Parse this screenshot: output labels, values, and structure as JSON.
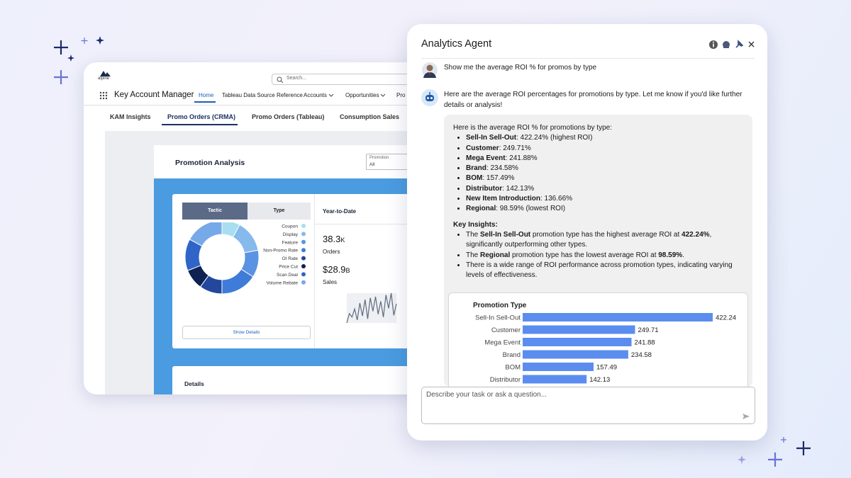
{
  "app": {
    "brand": "alpine",
    "search_placeholder": "Search...",
    "title": "Key Account Manager",
    "nav": [
      "Home",
      "Tableau Data Source Reference",
      "Accounts",
      "Opportunities",
      "Pro"
    ],
    "tabs": [
      "KAM Insights",
      "Promo Orders (CRMA)",
      "Promo Orders (Tableau)",
      "Consumption Sales"
    ]
  },
  "dashboard": {
    "title": "Promotion Analysis",
    "filter_label": "Promotion",
    "filter_value": "All",
    "toggle": [
      "Tactic",
      "Type"
    ],
    "show_details": "Show Details",
    "ytd_title": "Year-to-Date",
    "kpis": [
      {
        "value": "38.3",
        "unit": "K",
        "label": "Orders"
      },
      {
        "value": "$28.9",
        "unit": "B",
        "label": "Sales"
      }
    ],
    "details_title": "Details"
  },
  "chart_data": [
    {
      "type": "pie",
      "donut": true,
      "categories": [
        "Coupon",
        "Display",
        "Feature",
        "Non-Promo Rate",
        "OI Rate",
        "Price Cut",
        "Scan Deal",
        "Volume Rebate"
      ],
      "colors": [
        "#a9def0",
        "#86b9ec",
        "#5a93e2",
        "#3f7bd8",
        "#23479c",
        "#0f2152",
        "#2f65c8",
        "#76a9e8"
      ],
      "values": [
        8,
        14,
        12,
        16,
        10,
        9,
        14,
        17
      ]
    },
    {
      "type": "line",
      "color": "#5e6b7e",
      "values": [
        4,
        20,
        14,
        28,
        9,
        38,
        16,
        44,
        11,
        47,
        24,
        49,
        19,
        41,
        14,
        52,
        29,
        55,
        17,
        37
      ]
    },
    {
      "type": "bar",
      "orientation": "horizontal",
      "title": "Promotion Type",
      "categories": [
        "Sell-In Sell-Out",
        "Customer",
        "Mega Event",
        "Brand",
        "BOM",
        "Distributor"
      ],
      "values": [
        422.24,
        249.71,
        241.88,
        234.58,
        157.49,
        142.13
      ],
      "color": "#5b8def"
    }
  ],
  "agent": {
    "title": "Analytics Agent",
    "user_message": "Show me the average ROI % for promos by type",
    "bot_message": "Here are the average ROI percentages for promotions by type. Let me know if you'd like further details or analysis!",
    "response": {
      "intro": "Here is the average ROI % for promotions by type:",
      "items": [
        {
          "name": "Sell-In Sell-Out",
          "detail": ": 422.24% (highest ROI)"
        },
        {
          "name": "Customer",
          "detail": ": 249.71%"
        },
        {
          "name": "Mega Event",
          "detail": ": 241.88%"
        },
        {
          "name": "Brand",
          "detail": ": 234.58%"
        },
        {
          "name": "BOM",
          "detail": ": 157.49%"
        },
        {
          "name": "Distributor",
          "detail": ": 142.13%"
        },
        {
          "name": "New Item Introduction",
          "detail": ": 136.66%"
        },
        {
          "name": "Regional",
          "detail": ": 98.59% (lowest ROI)"
        }
      ],
      "insights_title": "Key Insights:",
      "insights": [
        [
          {
            "text": "The "
          },
          {
            "text": "Sell-In Sell-Out",
            "bold": true
          },
          {
            "text": " promotion type has the highest average ROI at "
          },
          {
            "text": "422.24%",
            "bold": true
          },
          {
            "text": ", significantly outperforming other types."
          }
        ],
        [
          {
            "text": "The "
          },
          {
            "text": "Regional",
            "bold": true
          },
          {
            "text": " promotion type has the lowest average ROI at "
          },
          {
            "text": "98.59%",
            "bold": true
          },
          {
            "text": "."
          }
        ],
        [
          {
            "text": "There is a wide range of ROI performance across promotion types, indicating varying levels of effectiveness."
          }
        ]
      ]
    },
    "input_placeholder": "Describe your task or ask a question..."
  }
}
